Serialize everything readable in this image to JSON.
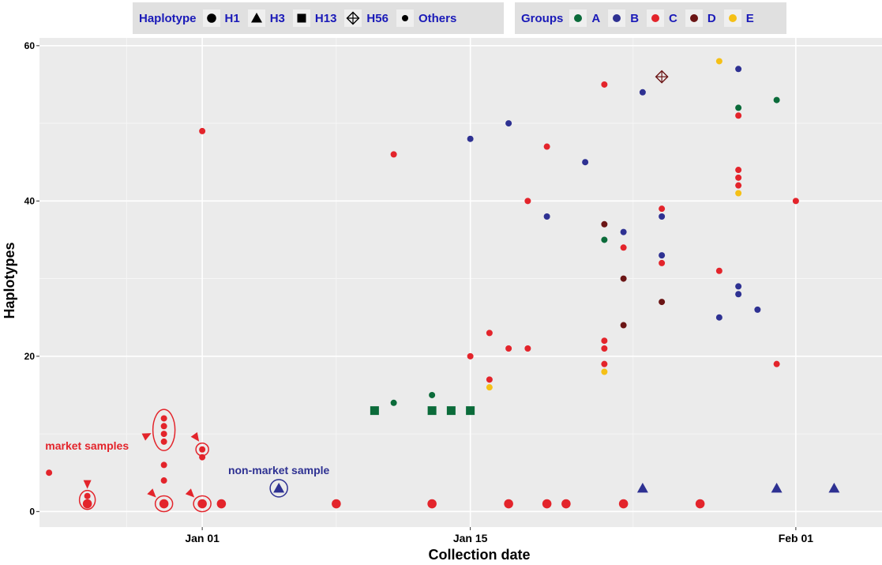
{
  "legend": {
    "haplotype_title": "Haplotype",
    "haplotype_items": [
      {
        "label": "H1",
        "shape": "circle-large"
      },
      {
        "label": "H3",
        "shape": "triangle"
      },
      {
        "label": "H13",
        "shape": "square"
      },
      {
        "label": "H56",
        "shape": "crossed-diamond"
      },
      {
        "label": "Others",
        "shape": "circle-small"
      }
    ],
    "groups_title": "Groups",
    "group_items": [
      {
        "label": "A",
        "color": "#0b6b3a"
      },
      {
        "label": "B",
        "color": "#2e3192"
      },
      {
        "label": "C",
        "color": "#e3242b"
      },
      {
        "label": "D",
        "color": "#6b1515"
      },
      {
        "label": "E",
        "color": "#f5c016"
      }
    ]
  },
  "chart_data": {
    "type": "scatter",
    "xlabel": "Collection date",
    "ylabel": "Haplotypes",
    "x_ticks": [
      "Jan 01",
      "Jan 15",
      "Feb 01"
    ],
    "x_tick_days": [
      0,
      14,
      31
    ],
    "y_ticks": [
      0,
      20,
      40,
      60
    ],
    "xlim_days": [
      -8.5,
      35.5
    ],
    "ylim": [
      -2,
      61
    ],
    "grid": true,
    "legend_position": "top",
    "points": [
      {
        "x": -8,
        "y": 5,
        "group": "C",
        "haplotype": "Others"
      },
      {
        "x": -6,
        "y": 1,
        "group": "C",
        "haplotype": "H1"
      },
      {
        "x": -6,
        "y": 2,
        "group": "C",
        "haplotype": "Others"
      },
      {
        "x": -2,
        "y": 1,
        "group": "C",
        "haplotype": "H1"
      },
      {
        "x": -2,
        "y": 4,
        "group": "C",
        "haplotype": "Others"
      },
      {
        "x": -2,
        "y": 6,
        "group": "C",
        "haplotype": "Others"
      },
      {
        "x": -2,
        "y": 9,
        "group": "C",
        "haplotype": "Others"
      },
      {
        "x": -2,
        "y": 10,
        "group": "C",
        "haplotype": "Others"
      },
      {
        "x": -2,
        "y": 11,
        "group": "C",
        "haplotype": "Others"
      },
      {
        "x": -2,
        "y": 12,
        "group": "C",
        "haplotype": "Others"
      },
      {
        "x": 0,
        "y": 1,
        "group": "C",
        "haplotype": "H1"
      },
      {
        "x": 0,
        "y": 7,
        "group": "C",
        "haplotype": "Others"
      },
      {
        "x": 0,
        "y": 8,
        "group": "C",
        "haplotype": "Others"
      },
      {
        "x": 0,
        "y": 49,
        "group": "C",
        "haplotype": "Others"
      },
      {
        "x": 1,
        "y": 1,
        "group": "C",
        "haplotype": "H1"
      },
      {
        "x": 4,
        "y": 3,
        "group": "B",
        "haplotype": "H3"
      },
      {
        "x": 7,
        "y": 1,
        "group": "C",
        "haplotype": "H1"
      },
      {
        "x": 9,
        "y": 13,
        "group": "A",
        "haplotype": "H13"
      },
      {
        "x": 10,
        "y": 14,
        "group": "A",
        "haplotype": "Others"
      },
      {
        "x": 10,
        "y": 46,
        "group": "C",
        "haplotype": "Others"
      },
      {
        "x": 12,
        "y": 1,
        "group": "C",
        "haplotype": "H1"
      },
      {
        "x": 12,
        "y": 13,
        "group": "A",
        "haplotype": "H13"
      },
      {
        "x": 12,
        "y": 15,
        "group": "A",
        "haplotype": "Others"
      },
      {
        "x": 13,
        "y": 13,
        "group": "A",
        "haplotype": "H13"
      },
      {
        "x": 14,
        "y": 13,
        "group": "A",
        "haplotype": "H13"
      },
      {
        "x": 14,
        "y": 20,
        "group": "C",
        "haplotype": "Others"
      },
      {
        "x": 14,
        "y": 48,
        "group": "B",
        "haplotype": "Others"
      },
      {
        "x": 15,
        "y": 16,
        "group": "E",
        "haplotype": "Others"
      },
      {
        "x": 15,
        "y": 17,
        "group": "C",
        "haplotype": "Others"
      },
      {
        "x": 15,
        "y": 23,
        "group": "C",
        "haplotype": "Others"
      },
      {
        "x": 16,
        "y": 1,
        "group": "C",
        "haplotype": "H1"
      },
      {
        "x": 16,
        "y": 21,
        "group": "C",
        "haplotype": "Others"
      },
      {
        "x": 16,
        "y": 50,
        "group": "B",
        "haplotype": "Others"
      },
      {
        "x": 17,
        "y": 21,
        "group": "C",
        "haplotype": "Others"
      },
      {
        "x": 17,
        "y": 40,
        "group": "C",
        "haplotype": "Others"
      },
      {
        "x": 18,
        "y": 1,
        "group": "C",
        "haplotype": "H1"
      },
      {
        "x": 18,
        "y": 38,
        "group": "B",
        "haplotype": "Others"
      },
      {
        "x": 18,
        "y": 47,
        "group": "C",
        "haplotype": "Others"
      },
      {
        "x": 19,
        "y": 1,
        "group": "C",
        "haplotype": "H1"
      },
      {
        "x": 20,
        "y": 45,
        "group": "B",
        "haplotype": "Others"
      },
      {
        "x": 21,
        "y": 18,
        "group": "E",
        "haplotype": "Others"
      },
      {
        "x": 21,
        "y": 19,
        "group": "C",
        "haplotype": "Others"
      },
      {
        "x": 21,
        "y": 21,
        "group": "C",
        "haplotype": "Others"
      },
      {
        "x": 21,
        "y": 22,
        "group": "C",
        "haplotype": "Others"
      },
      {
        "x": 21,
        "y": 35,
        "group": "A",
        "haplotype": "Others"
      },
      {
        "x": 21,
        "y": 37,
        "group": "D",
        "haplotype": "Others"
      },
      {
        "x": 21,
        "y": 55,
        "group": "C",
        "haplotype": "Others"
      },
      {
        "x": 22,
        "y": 1,
        "group": "C",
        "haplotype": "H1"
      },
      {
        "x": 22,
        "y": 24,
        "group": "D",
        "haplotype": "Others"
      },
      {
        "x": 22,
        "y": 30,
        "group": "D",
        "haplotype": "Others"
      },
      {
        "x": 22,
        "y": 34,
        "group": "C",
        "haplotype": "Others"
      },
      {
        "x": 22,
        "y": 36,
        "group": "B",
        "haplotype": "Others"
      },
      {
        "x": 23,
        "y": 3,
        "group": "B",
        "haplotype": "H3"
      },
      {
        "x": 23,
        "y": 54,
        "group": "B",
        "haplotype": "Others"
      },
      {
        "x": 24,
        "y": 27,
        "group": "D",
        "haplotype": "Others"
      },
      {
        "x": 24,
        "y": 32,
        "group": "C",
        "haplotype": "Others"
      },
      {
        "x": 24,
        "y": 33,
        "group": "B",
        "haplotype": "Others"
      },
      {
        "x": 24,
        "y": 38,
        "group": "B",
        "haplotype": "Others"
      },
      {
        "x": 24,
        "y": 39,
        "group": "C",
        "haplotype": "Others"
      },
      {
        "x": 24,
        "y": 56,
        "group": "D",
        "haplotype": "H56"
      },
      {
        "x": 26,
        "y": 1,
        "group": "C",
        "haplotype": "H1"
      },
      {
        "x": 27,
        "y": 25,
        "group": "B",
        "haplotype": "Others"
      },
      {
        "x": 27,
        "y": 31,
        "group": "C",
        "haplotype": "Others"
      },
      {
        "x": 27,
        "y": 58,
        "group": "E",
        "haplotype": "Others"
      },
      {
        "x": 28,
        "y": 28,
        "group": "B",
        "haplotype": "Others"
      },
      {
        "x": 28,
        "y": 29,
        "group": "B",
        "haplotype": "Others"
      },
      {
        "x": 28,
        "y": 41,
        "group": "E",
        "haplotype": "Others"
      },
      {
        "x": 28,
        "y": 42,
        "group": "C",
        "haplotype": "Others"
      },
      {
        "x": 28,
        "y": 43,
        "group": "C",
        "haplotype": "Others"
      },
      {
        "x": 28,
        "y": 44,
        "group": "C",
        "haplotype": "Others"
      },
      {
        "x": 28,
        "y": 51,
        "group": "C",
        "haplotype": "Others"
      },
      {
        "x": 28,
        "y": 52,
        "group": "A",
        "haplotype": "Others"
      },
      {
        "x": 28,
        "y": 57,
        "group": "B",
        "haplotype": "Others"
      },
      {
        "x": 29,
        "y": 26,
        "group": "B",
        "haplotype": "Others"
      },
      {
        "x": 30,
        "y": 3,
        "group": "B",
        "haplotype": "H3"
      },
      {
        "x": 30,
        "y": 19,
        "group": "C",
        "haplotype": "Others"
      },
      {
        "x": 30,
        "y": 53,
        "group": "A",
        "haplotype": "Others"
      },
      {
        "x": 31,
        "y": 40,
        "group": "C",
        "haplotype": "Others"
      },
      {
        "x": 33,
        "y": 3,
        "group": "B",
        "haplotype": "H3"
      }
    ],
    "annotations": [
      {
        "text": "market samples",
        "color": "#e3242b"
      },
      {
        "text": "non-market sample",
        "color": "#2e3192"
      }
    ]
  }
}
